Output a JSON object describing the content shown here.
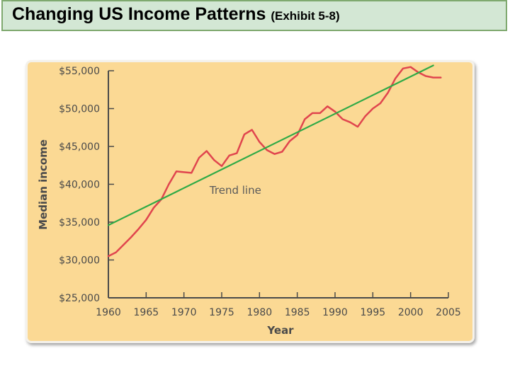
{
  "header": {
    "title": "Changing US Income Patterns",
    "subtitle": "(Exhibit 5-8)"
  },
  "colors": {
    "title_bg": "#d3e7d4",
    "title_border": "#7fa96f",
    "panel_bg": "#fbd994",
    "income_line": "#e0454e",
    "trend_line": "#2faa46",
    "axis": "#4a4a4a"
  },
  "chart_data": {
    "type": "line",
    "title": "",
    "xlabel": "Year",
    "ylabel": "Median income",
    "xlim": [
      1960,
      2005
    ],
    "ylim": [
      25000,
      55000
    ],
    "x_ticks": [
      1960,
      1965,
      1970,
      1975,
      1980,
      1985,
      1990,
      1995,
      2000,
      2005
    ],
    "x_tick_labels": [
      "1960",
      "1965",
      "1970",
      "1975",
      "1980",
      "1985",
      "1990",
      "1995",
      "2000",
      "2005"
    ],
    "y_ticks": [
      25000,
      30000,
      35000,
      40000,
      45000,
      50000,
      55000
    ],
    "y_tick_labels": [
      "$25,000",
      "$30,000",
      "$35,000",
      "$40,000",
      "$45,000",
      "$50,000",
      "$55,000"
    ],
    "grid": false,
    "series": [
      {
        "color": "#e0454e",
        "x": [
          1960,
          1961,
          1962,
          1963,
          1964,
          1965,
          1966,
          1967,
          1968,
          1969,
          1970,
          1971,
          1972,
          1973,
          1974,
          1975,
          1976,
          1977,
          1978,
          1979,
          1980,
          1981,
          1982,
          1983,
          1984,
          1985,
          1986,
          1987,
          1988,
          1989,
          1990,
          1991,
          1992,
          1993,
          1994,
          1995,
          1996,
          1997,
          1998,
          1999,
          2000,
          2001,
          2002,
          2003,
          2004
        ],
        "y": [
          30500,
          31000,
          32000,
          33000,
          34100,
          35300,
          36900,
          38000,
          40000,
          41700,
          41600,
          41500,
          43500,
          44400,
          43200,
          42400,
          43800,
          44100,
          46600,
          47200,
          45600,
          44500,
          44000,
          44300,
          45700,
          46500,
          48600,
          49400,
          49400,
          50300,
          49600,
          48600,
          48200,
          47600,
          49000,
          50000,
          50700,
          52100,
          54000,
          55300,
          55500,
          54800,
          54300,
          54100,
          54100
        ]
      },
      {
        "name": "Trend line",
        "color": "#2faa46",
        "x": [
          1960,
          2003
        ],
        "y": [
          34600,
          55700
        ]
      }
    ],
    "annotations": [
      {
        "text": "Trend line",
        "x": 1973.4,
        "y": 39200
      }
    ]
  }
}
